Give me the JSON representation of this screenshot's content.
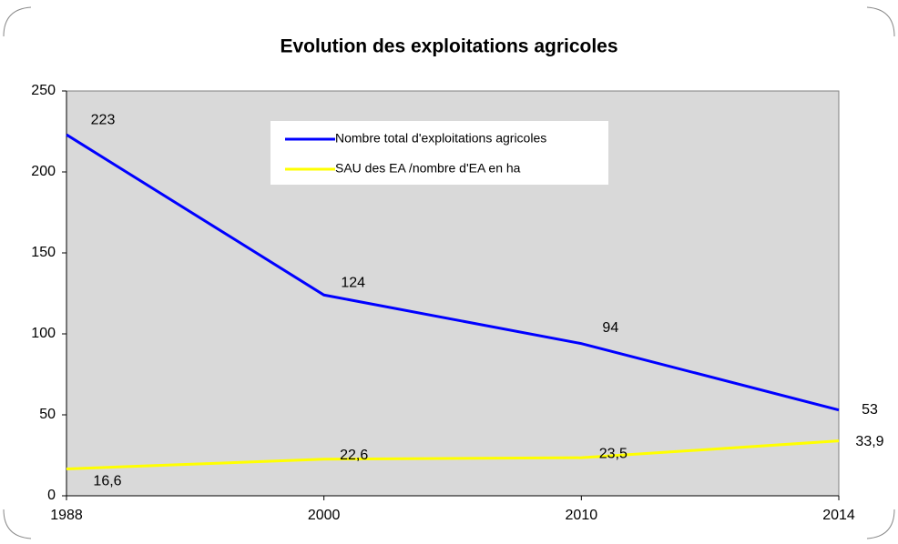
{
  "chart_data": {
    "type": "line",
    "title": "Evolution des exploitations agricoles",
    "categories": [
      "1988",
      "2000",
      "2010",
      "2014"
    ],
    "series": [
      {
        "name": "Nombre total d'exploitations agricoles",
        "color": "#0000ff",
        "values": [
          223,
          124,
          94,
          53
        ]
      },
      {
        "name": "SAU des EA  /nombre d'EA en ha",
        "color": "#ffff00",
        "values": [
          16.6,
          22.6,
          23.5,
          33.9
        ],
        "value_labels": [
          "16,6",
          "22,6",
          "23,5",
          "33,9"
        ]
      }
    ],
    "ylim": [
      0,
      250
    ],
    "yticks": [
      0,
      50,
      100,
      150,
      200,
      250
    ],
    "plot_background": "#d9d9d9"
  }
}
